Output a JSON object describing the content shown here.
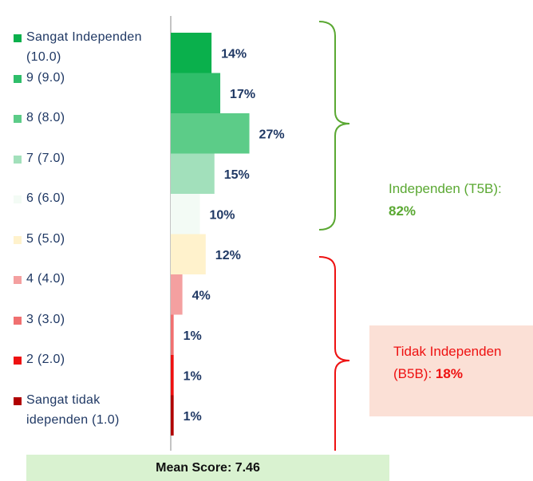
{
  "chart_data": {
    "type": "bar",
    "orientation": "horizontal",
    "categories": [
      "Sangat Independen (10.0)",
      "9 (9.0)",
      "8 (8.0)",
      "7 (7.0)",
      "6 (6.0)",
      "5 (5.0)",
      "4 (4.0)",
      "3 (3.0)",
      "2 (2.0)",
      "Sangat tidak idependen (1.0)"
    ],
    "values": [
      14,
      17,
      27,
      15,
      10,
      12,
      4,
      1,
      1,
      1
    ],
    "value_labels": [
      "14%",
      "17%",
      "27%",
      "15%",
      "10%",
      "12%",
      "4%",
      "1%",
      "1%",
      "1%"
    ],
    "colors": [
      "#0ab04c",
      "#2fbe6a",
      "#5ccc88",
      "#a2e0bb",
      "#f3fbf5",
      "#fff2cc",
      "#f4a0a0",
      "#f07070",
      "#ee1111",
      "#b00000"
    ],
    "annotations": [
      {
        "label": "Independen (T5B):",
        "value_label": "82%",
        "color": "#5aa832"
      },
      {
        "label": "Tidak Independen (B5B):",
        "value_label": "18%",
        "color": "#ee1111"
      }
    ],
    "footer": "Mean Score: 7.46"
  }
}
